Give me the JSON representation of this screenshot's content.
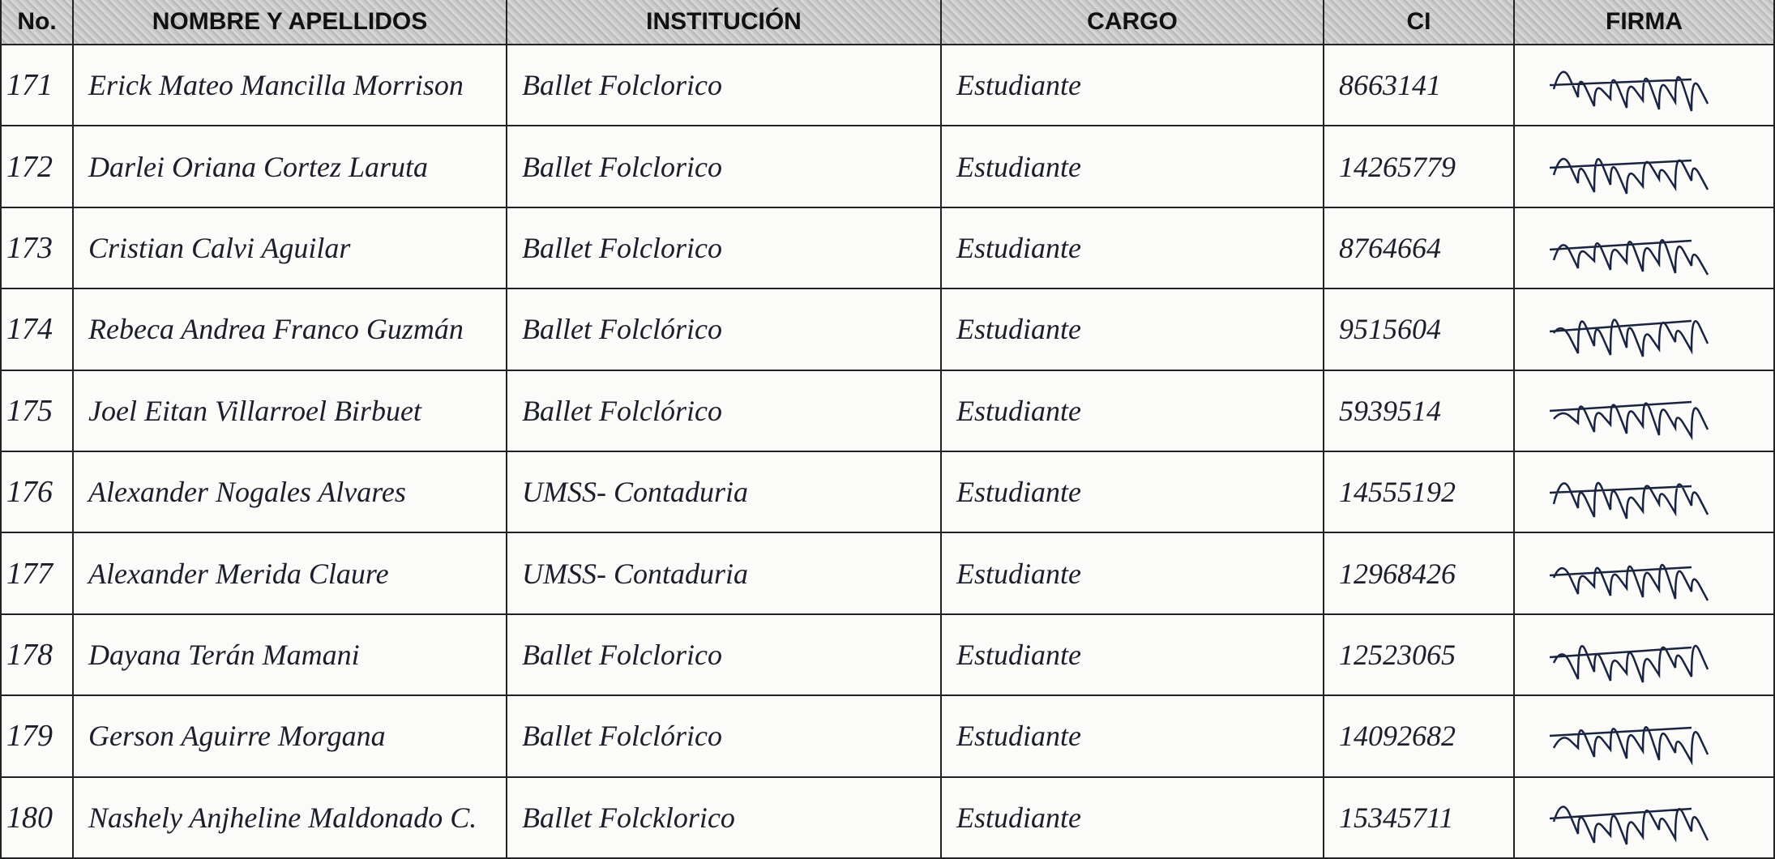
{
  "header": [
    "No.",
    "NOMBRE Y APELLIDOS",
    "INSTITUCIÓN",
    "CARGO",
    "CI",
    "FIRMA"
  ],
  "rows": [
    [
      "171",
      "Erick Mateo Mancilla Morrison",
      "Ballet Folclorico",
      "Estudiante",
      "8663141"
    ],
    [
      "172",
      "Darlei Oriana Cortez Laruta",
      "Ballet Folclorico",
      "Estudiante",
      "14265779"
    ],
    [
      "173",
      "Cristian Calvi Aguilar",
      "Ballet Folclorico",
      "Estudiante",
      "8764664"
    ],
    [
      "174",
      "Rebeca Andrea Franco Guzmán",
      "Ballet Folclórico",
      "Estudiante",
      "9515604"
    ],
    [
      "175",
      "Joel Eitan Villarroel Birbuet",
      "Ballet Folclórico",
      "Estudiante",
      "5939514"
    ],
    [
      "176",
      "Alexander Nogales Alvares",
      "UMSS- Contaduria",
      "Estudiante",
      "14555192"
    ],
    [
      "177",
      "Alexander Merida Claure",
      "UMSS- Contaduria",
      "Estudiante",
      "12968426"
    ],
    [
      "178",
      "Dayana Terán Mamani",
      "Ballet Folclorico",
      "Estudiante",
      "12523065"
    ],
    [
      "179",
      "Gerson Aguirre Morgana",
      "Ballet Folclórico",
      "Estudiante",
      "14092682"
    ],
    [
      "180",
      "Nashely Anjheline Maldonado C.",
      "Ballet Folcklorico",
      "Estudiante",
      "15345711"
    ]
  ]
}
